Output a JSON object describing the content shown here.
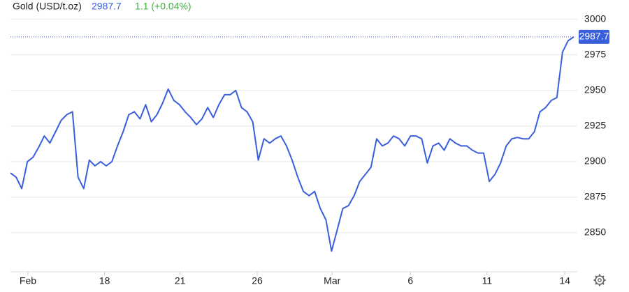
{
  "header": {
    "name": "Gold (USD/t.oz)",
    "price": "2987.7",
    "change": "1.1 (+0.04%)"
  },
  "chart_data": {
    "type": "line",
    "series": [
      {
        "name": "Gold (USD/t.oz)",
        "color": "#3a5fdc",
        "values": [
          2892,
          2889,
          2881,
          2900,
          2903,
          2910,
          2918,
          2913,
          2921,
          2929,
          2933,
          2935,
          2889,
          2881,
          2901,
          2897,
          2900,
          2897,
          2900,
          2911,
          2921,
          2933,
          2935,
          2930,
          2940,
          2928,
          2933,
          2941,
          2951,
          2943,
          2940,
          2935,
          2931,
          2926,
          2930,
          2938,
          2931,
          2940,
          2947,
          2947,
          2950,
          2938,
          2935,
          2928,
          2901,
          2916,
          2913,
          2916,
          2918,
          2911,
          2901,
          2889,
          2879,
          2876,
          2879,
          2867,
          2859,
          2837,
          2852,
          2867,
          2869,
          2876,
          2886,
          2891,
          2896,
          2916,
          2911,
          2913,
          2918,
          2916,
          2911,
          2918,
          2918,
          2916,
          2899,
          2911,
          2913,
          2908,
          2916,
          2913,
          2911,
          2911,
          2908,
          2906,
          2906,
          2886,
          2891,
          2899,
          2911,
          2916,
          2917,
          2916,
          2916,
          2921,
          2935,
          2938,
          2943,
          2945,
          2977,
          2985,
          2987.7
        ]
      }
    ],
    "last_value_label": "2987.7",
    "xlim": [
      0,
      100
    ],
    "xticks": [
      {
        "value": 3.1,
        "label": "Feb"
      },
      {
        "value": 16.7,
        "label": "18"
      },
      {
        "value": 30.1,
        "label": "21"
      },
      {
        "value": 43.8,
        "label": "26"
      },
      {
        "value": 57.1,
        "label": "Mar"
      },
      {
        "value": 71,
        "label": "6"
      },
      {
        "value": 84.6,
        "label": "11"
      },
      {
        "value": 98.4,
        "label": "14"
      }
    ],
    "ylim": [
      2822.5,
      3004.8
    ],
    "yticks": [
      2850,
      2875,
      2900,
      2925,
      2950,
      2975,
      3000
    ],
    "grid": true
  }
}
